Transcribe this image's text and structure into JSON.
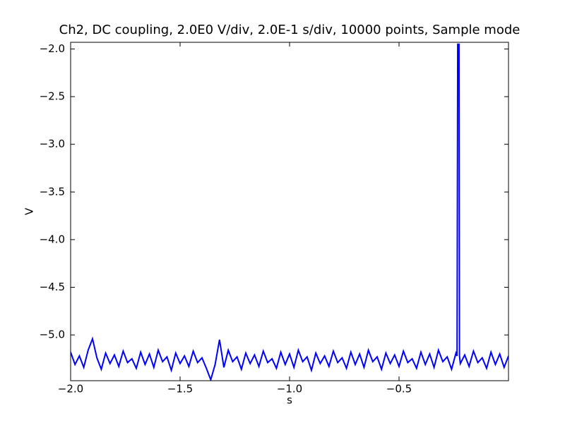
{
  "chart_data": {
    "type": "line",
    "title": "Ch2, DC coupling, 2.0E0 V/div, 2.0E-1 s/div, 10000 points, Sample mode",
    "x_label": "s",
    "y_label": "V",
    "color": "#0000ff",
    "x": [
      -2.0,
      -1.98,
      -1.96,
      -1.94,
      -1.92,
      -1.9,
      -1.88,
      -1.86,
      -1.84,
      -1.82,
      -1.8,
      -1.78,
      -1.76,
      -1.74,
      -1.72,
      -1.7,
      -1.68,
      -1.66,
      -1.64,
      -1.62,
      -1.6,
      -1.58,
      -1.56,
      -1.54,
      -1.52,
      -1.5,
      -1.48,
      -1.46,
      -1.44,
      -1.42,
      -1.4,
      -1.38,
      -1.36,
      -1.34,
      -1.32,
      -1.3,
      -1.28,
      -1.26,
      -1.24,
      -1.22,
      -1.2,
      -1.18,
      -1.16,
      -1.14,
      -1.12,
      -1.1,
      -1.08,
      -1.06,
      -1.04,
      -1.02,
      -1.0,
      -0.98,
      -0.96,
      -0.94,
      -0.92,
      -0.9,
      -0.88,
      -0.86,
      -0.84,
      -0.82,
      -0.8,
      -0.78,
      -0.76,
      -0.74,
      -0.72,
      -0.7,
      -0.68,
      -0.66,
      -0.64,
      -0.62,
      -0.6,
      -0.58,
      -0.56,
      -0.54,
      -0.52,
      -0.5,
      -0.48,
      -0.46,
      -0.44,
      -0.42,
      -0.4,
      -0.38,
      -0.36,
      -0.34,
      -0.32,
      -0.3,
      -0.28,
      -0.26,
      -0.24,
      -0.235,
      -0.232,
      -0.226,
      -0.224,
      -0.22,
      -0.2,
      -0.18,
      -0.16,
      -0.14,
      -0.12,
      -0.1,
      -0.08,
      -0.06,
      -0.04,
      -0.02,
      0.0
    ],
    "values": [
      -5.18,
      -5.31,
      -5.22,
      -5.34,
      -5.16,
      -5.04,
      -5.24,
      -5.36,
      -5.19,
      -5.3,
      -5.21,
      -5.33,
      -5.17,
      -5.29,
      -5.25,
      -5.35,
      -5.18,
      -5.31,
      -5.2,
      -5.34,
      -5.16,
      -5.28,
      -5.23,
      -5.37,
      -5.19,
      -5.3,
      -5.22,
      -5.33,
      -5.17,
      -5.29,
      -5.24,
      -5.35,
      -5.47,
      -5.31,
      -5.05,
      -5.34,
      -5.16,
      -5.28,
      -5.23,
      -5.36,
      -5.19,
      -5.3,
      -5.21,
      -5.33,
      -5.17,
      -5.29,
      -5.25,
      -5.35,
      -5.18,
      -5.31,
      -5.2,
      -5.34,
      -5.16,
      -5.28,
      -5.23,
      -5.37,
      -5.19,
      -5.3,
      -5.22,
      -5.33,
      -5.17,
      -5.29,
      -5.24,
      -5.35,
      -5.18,
      -5.31,
      -5.2,
      -5.34,
      -5.16,
      -5.28,
      -5.23,
      -5.36,
      -5.19,
      -5.3,
      -5.21,
      -5.33,
      -5.17,
      -5.29,
      -5.25,
      -5.35,
      -5.18,
      -5.31,
      -5.2,
      -5.34,
      -5.16,
      -5.28,
      -5.23,
      -5.36,
      -5.19,
      -5.22,
      -1.95,
      -1.95,
      -5.22,
      -5.3,
      -5.21,
      -5.33,
      -5.17,
      -5.29,
      -5.24,
      -5.35,
      -5.18,
      -5.31,
      -5.2,
      -5.34,
      -5.22
    ],
    "xlim": [
      -2.0,
      0.0
    ],
    "ylim": [
      -5.48,
      -1.93
    ],
    "xticks": [
      {
        "value": -2.0,
        "label": "−2.0"
      },
      {
        "value": -1.5,
        "label": "−1.5"
      },
      {
        "value": -1.0,
        "label": "−1.0"
      },
      {
        "value": -0.5,
        "label": "−0.5"
      }
    ],
    "yticks": [
      {
        "value": -2.0,
        "label": "−2.0"
      },
      {
        "value": -2.5,
        "label": "−2.5"
      },
      {
        "value": -3.0,
        "label": "−3.0"
      },
      {
        "value": -3.5,
        "label": "−3.5"
      },
      {
        "value": -4.0,
        "label": "−4.0"
      },
      {
        "value": -4.5,
        "label": "−4.5"
      },
      {
        "value": -5.0,
        "label": "−5.0"
      }
    ],
    "grid": false
  }
}
